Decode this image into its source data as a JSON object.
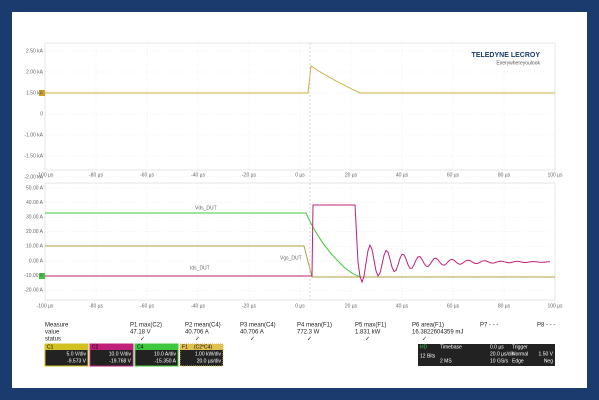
{
  "logo": {
    "brand": "TELEDYNE LECROY",
    "tagline": "Everywhereyoulook"
  },
  "upper_axis": {
    "y_labels": [
      "2.50 kA",
      "2.00 kA",
      "1.50 kA",
      "0",
      "-1.00 kA",
      "-1.50 kA",
      "-2.00 kA"
    ]
  },
  "lower_axis": {
    "y_labels": [
      "50.00 A",
      "40.00 A",
      "30.00 A",
      "20.00 A",
      "10.00 A",
      "0.00 A",
      "-10.00 A",
      "-20.00 A"
    ]
  },
  "time_labels": [
    "-100 µs",
    "-80 µs",
    "-60 µs",
    "-40 µs",
    "-20 µs",
    "0 µs",
    "20 µs",
    "40 µs",
    "60 µs",
    "80 µs",
    "100 µs"
  ],
  "trace_labels": {
    "vds": "Vds_DUT",
    "vgs": "Vgs_DUT",
    "ids": "Ids_DUT"
  },
  "measure": {
    "header": [
      "Measure",
      "P1 max(C2)",
      "P2 mean(C4)",
      "P3 mean(C4)",
      "P4 mean(F1)",
      "P5 max(F1)",
      "P6 area(F1)",
      "P7 - - -",
      "P8 - - -"
    ],
    "value": [
      "value",
      "47.18 V",
      "40.706 A",
      "40.706 A",
      "772.3 W",
      "1.831 kW",
      "16.3822604359 mJ"
    ],
    "status": "status"
  },
  "channels": [
    {
      "name": "C1",
      "scale": "5.0 V/div",
      "offset": "-9.573 V"
    },
    {
      "name": "C2",
      "scale": "10.0 V/div",
      "offset": "-19.768 V"
    },
    {
      "name": "C4",
      "scale": "10.0 A/div",
      "offset": "-15.350 A"
    },
    {
      "name": "F1",
      "source": "(C2*C4)",
      "scale": "1.00 kW/div",
      "timebase": "20.0 µs/div"
    }
  ],
  "status_panel": {
    "hd": "HD",
    "bits": "12 Bits",
    "timebase": "Timebase",
    "delay": "0.0 µs",
    "tdiv": "20.0 µs/div",
    "samples": "2 MS",
    "rate": "10 GS/s",
    "trigger": "Trigger",
    "mode": "Normal",
    "level": "1.50 V",
    "type": "Edge",
    "slope": "Neg"
  }
}
